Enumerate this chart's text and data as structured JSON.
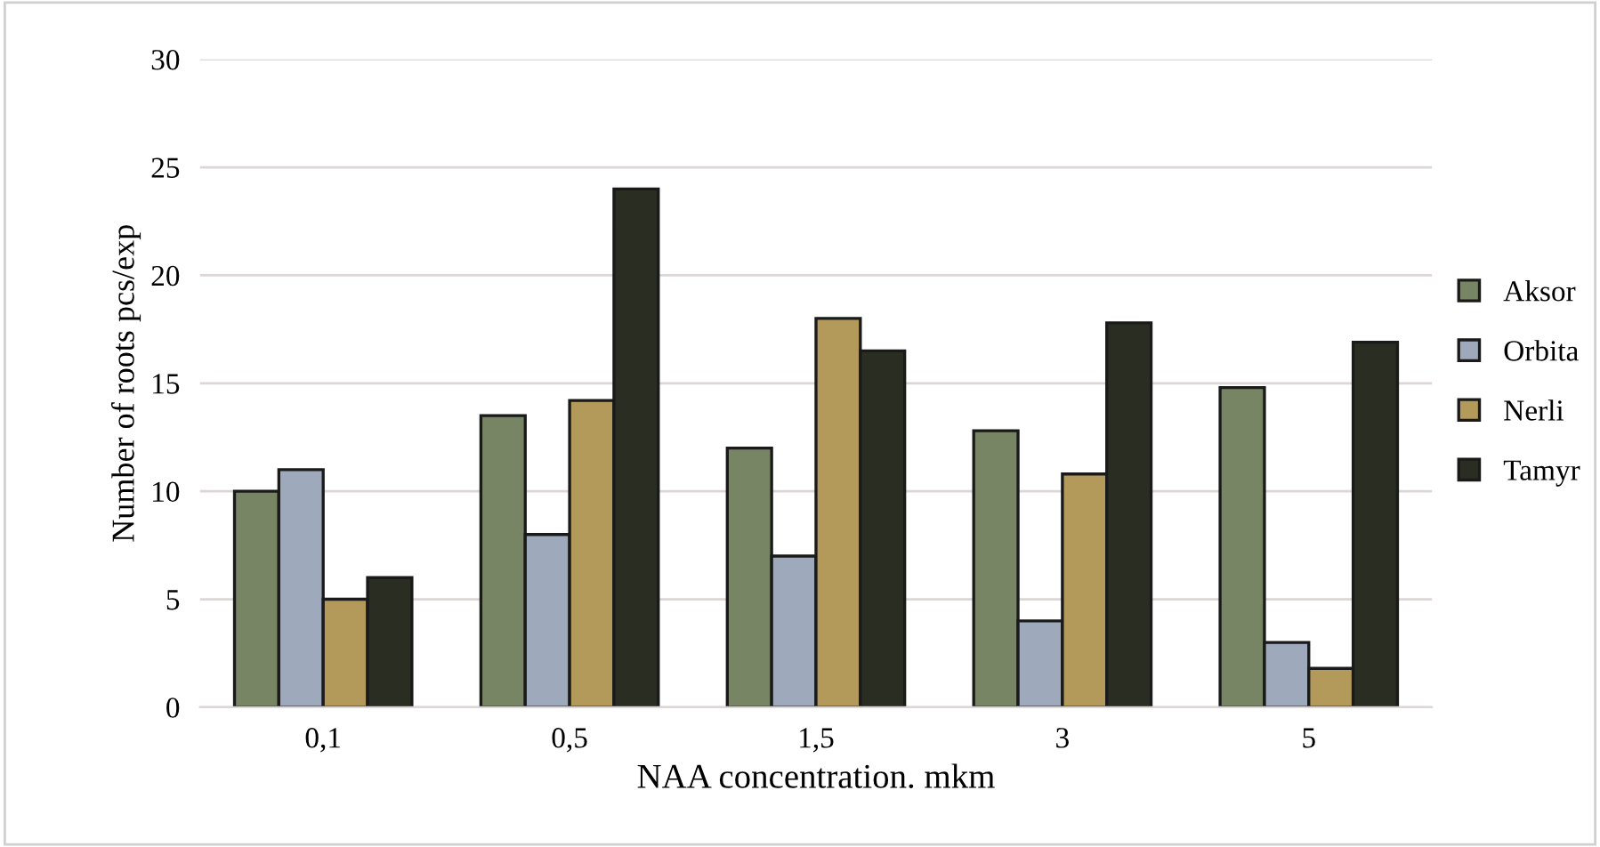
{
  "chart_data": {
    "type": "bar",
    "xlabel": "NAA concentration. mkm",
    "ylabel": "Number of roots pcs/exp",
    "categories": [
      "0,1",
      "0,5",
      "1,5",
      "3",
      "5"
    ],
    "series": [
      {
        "name": "Aksor",
        "color": "#778565",
        "values": [
          10,
          13.5,
          12,
          12.8,
          14.8
        ]
      },
      {
        "name": "Orbita",
        "color": "#9eaabb",
        "values": [
          11,
          8,
          7,
          4,
          3
        ]
      },
      {
        "name": "Nerli",
        "color": "#b49a5a",
        "values": [
          5,
          14.2,
          18,
          10.8,
          1.8
        ]
      },
      {
        "name": "Tamyr",
        "color": "#2a2e22",
        "values": [
          6,
          24,
          16.5,
          17.8,
          16.9
        ]
      }
    ],
    "ylim": [
      0,
      30
    ],
    "yticks": [
      0,
      5,
      10,
      15,
      20,
      25,
      30
    ],
    "grid": "y",
    "legend": "right"
  }
}
